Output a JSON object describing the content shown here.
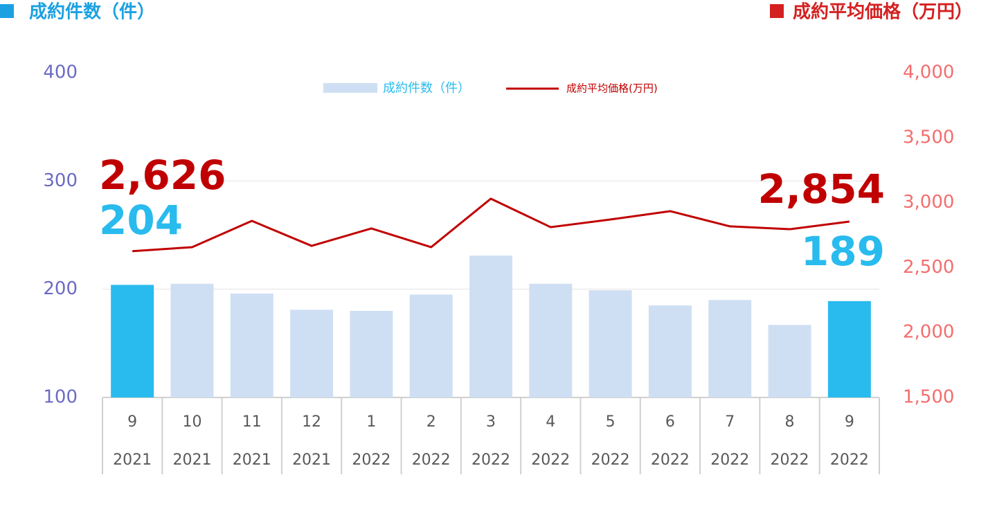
{
  "chart_data": {
    "type": "bar_line",
    "left_title": "成約件数（件）",
    "right_title": "成約平均価格（万円）",
    "categories": [
      "9",
      "10",
      "11",
      "12",
      "1",
      "2",
      "3",
      "4",
      "5",
      "6",
      "7",
      "8",
      "9"
    ],
    "category_years": [
      "2021",
      "2021",
      "2021",
      "2021",
      "2022",
      "2022",
      "2022",
      "2022",
      "2022",
      "2022",
      "2022",
      "2022",
      "2022"
    ],
    "series": [
      {
        "name": "成約件数（件）",
        "type": "bar",
        "color": "#cfdff3",
        "colors": [
          "#29bbee",
          "#cfdff3",
          "#cfdff3",
          "#cfdff3",
          "#cfdff3",
          "#cfdff3",
          "#cfdff3",
          "#cfdff3",
          "#cfdff3",
          "#cfdff3",
          "#cfdff3",
          "#cfdff3",
          "#29bbee"
        ],
        "values": [
          204,
          205,
          196,
          181,
          180,
          195,
          231,
          205,
          199,
          185,
          190,
          167,
          189
        ],
        "value_labels": [
          "204",
          null,
          null,
          null,
          null,
          null,
          null,
          null,
          null,
          null,
          null,
          null,
          "189"
        ]
      },
      {
        "name": "成約平均価格(万円)",
        "type": "line",
        "axis": "y2",
        "color": "#c00000",
        "values": [
          2626,
          2657,
          2859,
          2667,
          2801,
          2657,
          3030,
          2811,
          2870,
          2934,
          2817,
          2795,
          2854
        ],
        "value_labels": [
          "2,626",
          null,
          null,
          null,
          null,
          null,
          null,
          null,
          null,
          null,
          null,
          null,
          "2,854"
        ]
      }
    ],
    "ylim": [
      100,
      400
    ],
    "yticks": [
      100,
      200,
      300,
      400
    ],
    "y2lim": [
      1500,
      4000
    ],
    "y2ticks": [
      {
        "value": 1500,
        "label": "1,500"
      },
      {
        "value": 2000,
        "label": "2,000"
      },
      {
        "value": 2500,
        "label": "2,500"
      },
      {
        "value": 3000,
        "label": "3,000"
      },
      {
        "value": 3500,
        "label": "3,500"
      },
      {
        "value": 4000,
        "label": "4,000"
      }
    ],
    "grid": true,
    "legend": "top"
  }
}
